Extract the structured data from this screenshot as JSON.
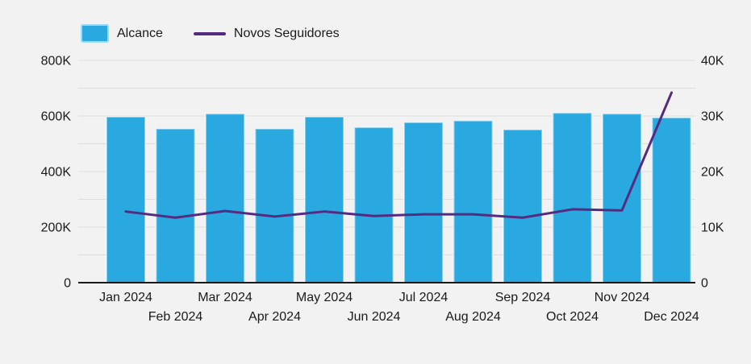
{
  "colors": {
    "background": "#F2F2F2",
    "bar": "#29A9E0",
    "bar_edge": "rgba(255,255,255,0.45)",
    "line": "#552B81",
    "grid": "#DDDDDD",
    "axis_line": "#1A1A1A",
    "text": "#1A1A1A"
  },
  "legend": {
    "position": "top-left",
    "items": [
      {
        "label": "Alcance",
        "marker": "bar-swatch"
      },
      {
        "label": "Novos Seguidores",
        "marker": "line-swatch"
      }
    ]
  },
  "chart_data": {
    "type": "bar",
    "subtype": "combo-bar-line-dual-axis",
    "title": "",
    "grid": true,
    "legend_position": "top-left",
    "categories": [
      "Jan 2024",
      "Feb 2024",
      "Mar 2024",
      "Apr 2024",
      "May 2024",
      "Jun 2024",
      "Jul 2024",
      "Aug 2024",
      "Sep 2024",
      "Oct 2024",
      "Nov 2024",
      "Dec 2024"
    ],
    "series": [
      {
        "name": "Alcance",
        "type": "bar",
        "axis": "left",
        "color": "#29A9E0",
        "values": [
          597000,
          554000,
          608000,
          554000,
          597000,
          559000,
          577000,
          583000,
          551000,
          611000,
          608000,
          594000
        ]
      },
      {
        "name": "Novos Seguidores",
        "type": "line",
        "axis": "right",
        "color": "#552B81",
        "values": [
          12800,
          11700,
          12900,
          11900,
          12800,
          12000,
          12300,
          12300,
          11700,
          13200,
          13000,
          34200
        ]
      }
    ],
    "left_axis": {
      "min": 0,
      "max": 800000,
      "grid_step": 100000,
      "ticks": [
        {
          "value": 0,
          "label": "0"
        },
        {
          "value": 200000,
          "label": "200K"
        },
        {
          "value": 400000,
          "label": "400K"
        },
        {
          "value": 600000,
          "label": "600K"
        },
        {
          "value": 800000,
          "label": "800K"
        }
      ]
    },
    "right_axis": {
      "min": 0,
      "max": 40000,
      "ticks": [
        {
          "value": 0,
          "label": "0"
        },
        {
          "value": 10000,
          "label": "10K"
        },
        {
          "value": 20000,
          "label": "20K"
        },
        {
          "value": 30000,
          "label": "30K"
        },
        {
          "value": 40000,
          "label": "40K"
        }
      ]
    },
    "x_axis": {
      "label_rows": "staggered"
    }
  }
}
